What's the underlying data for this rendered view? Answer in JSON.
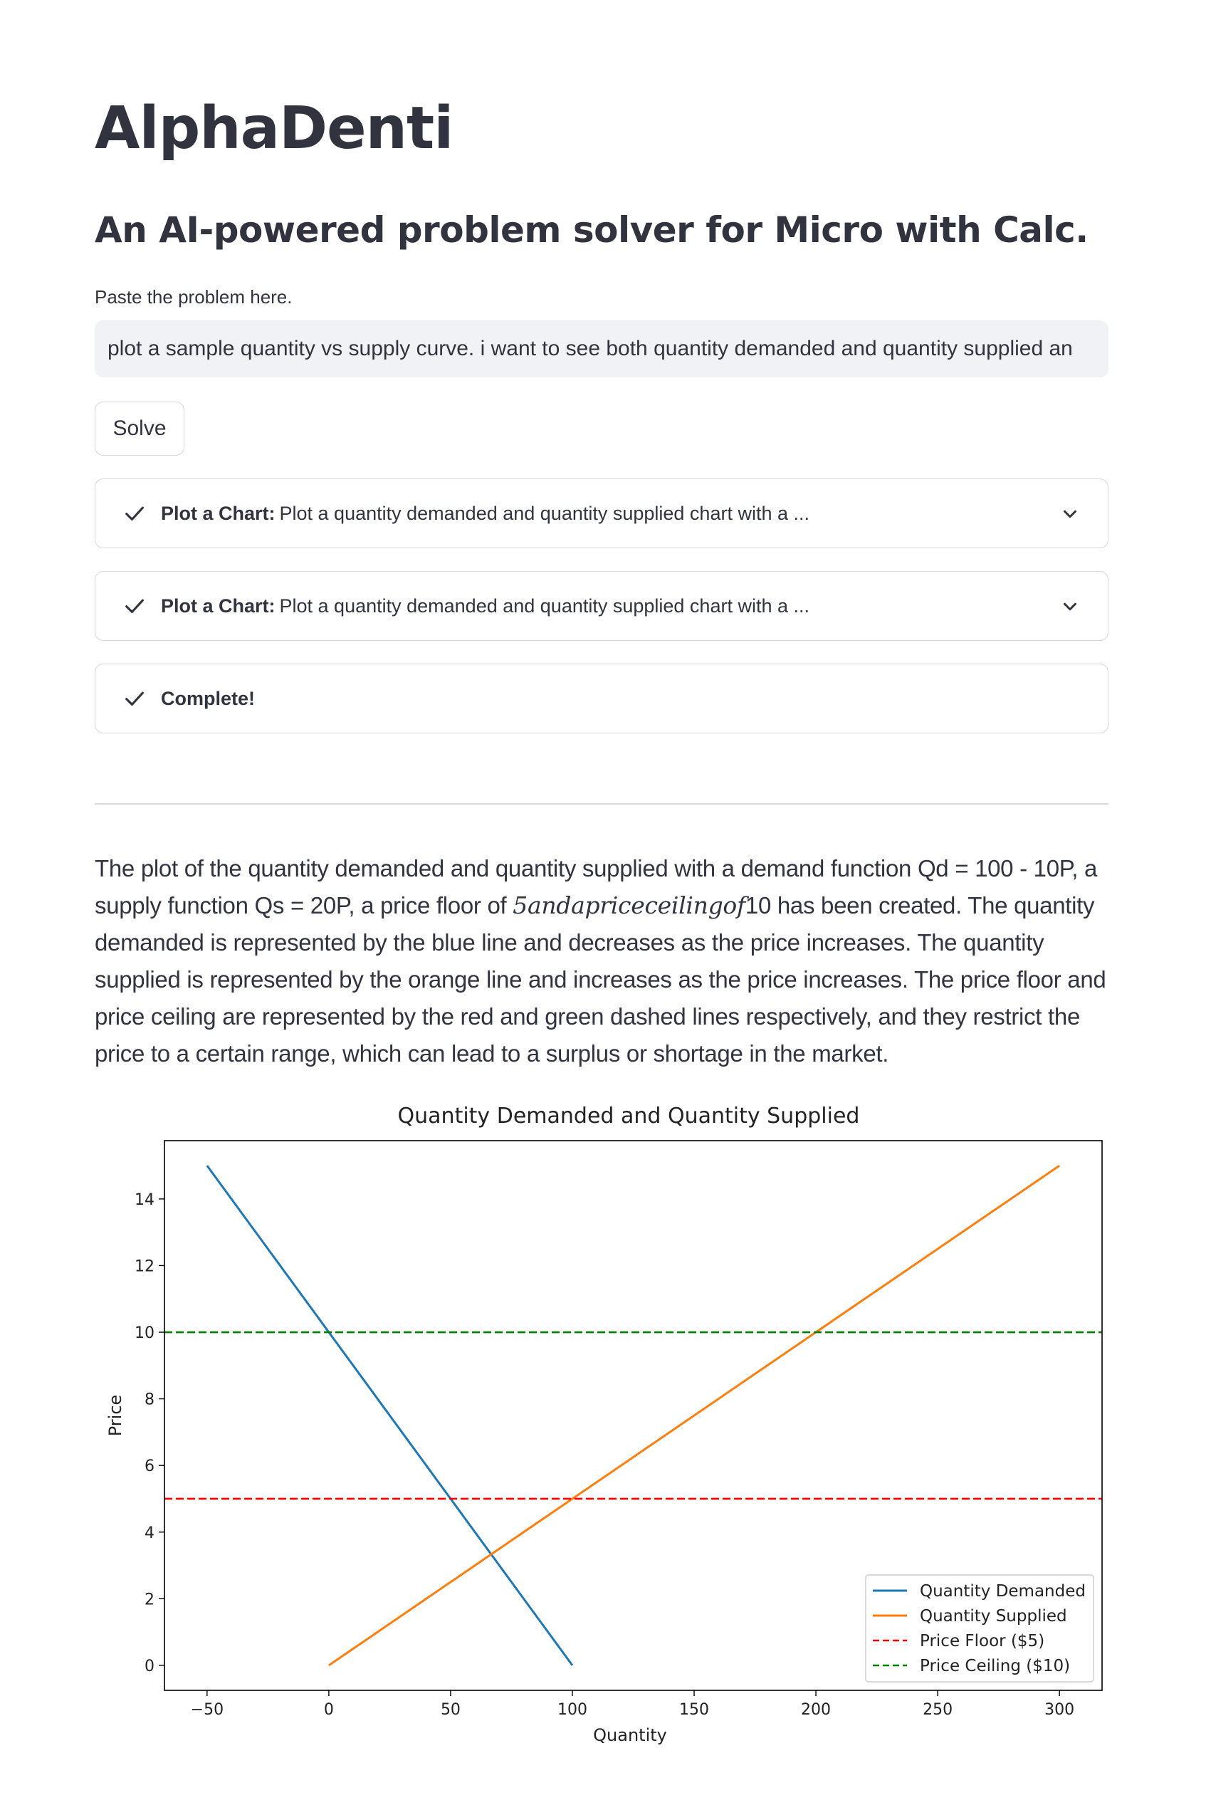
{
  "app": {
    "title": "AlphaDenti",
    "subtitle": "An AI-powered problem solver for Micro with Calc."
  },
  "problem_input": {
    "label": "Paste the problem here.",
    "value": "plot a sample quantity vs supply curve. i want to see both quantity demanded and quantity supplied an"
  },
  "solve_button": {
    "label": "Solve"
  },
  "status_steps": [
    {
      "label": "Plot a Chart:",
      "description": "Plot a quantity demanded and quantity supplied chart with a ...",
      "state": "complete",
      "expandable": true
    },
    {
      "label": "Plot a Chart:",
      "description": "Plot a quantity demanded and quantity supplied chart with a ...",
      "state": "complete",
      "expandable": true
    },
    {
      "label": "Complete!",
      "description": "",
      "state": "complete",
      "expandable": false
    }
  ],
  "answer": {
    "text_before_math": "The plot of the quantity demanded and quantity supplied with a demand function Qd = 100 - 10P, a supply function Qs = 20P, a price floor of ",
    "math": "5andapriceceilingof",
    "text_after_math": "10 has been created. The quantity demanded is represented by the blue line and decreases as the price increases. The quantity supplied is represented by the orange line and increases as the price increases. The price floor and price ceiling are represented by the red and green dashed lines respectively, and they restrict the price to a certain range, which can lead to a surplus or shortage in the market."
  },
  "colors": {
    "text": "#31333f",
    "input_bg": "#f0f2f6",
    "border": "#d6d7db",
    "demand": "#1f77b4",
    "supply": "#ff7f0e",
    "floor": "#ff0000",
    "ceiling": "#008000"
  },
  "chart_data": {
    "type": "line",
    "title": "Quantity Demanded and Quantity Supplied",
    "xlabel": "Quantity",
    "ylabel": "Price",
    "xlim": [
      -67.5,
      317.5
    ],
    "ylim": [
      -0.75,
      15.75
    ],
    "xticks": [
      -50,
      0,
      50,
      100,
      150,
      200,
      250,
      300
    ],
    "yticks": [
      0,
      2,
      4,
      6,
      8,
      10,
      12,
      14
    ],
    "grid": false,
    "legend_position": "lower-right",
    "series": [
      {
        "name": "Quantity Demanded",
        "style": "solid",
        "color": "#1f77b4",
        "x": [
          -50,
          100
        ],
        "y": [
          15,
          0
        ]
      },
      {
        "name": "Quantity Supplied",
        "style": "solid",
        "color": "#ff7f0e",
        "x": [
          0,
          300
        ],
        "y": [
          0,
          15
        ]
      },
      {
        "name": "Price Floor ($5)",
        "style": "dashed",
        "color": "#ff0000",
        "hline": 5
      },
      {
        "name": "Price Ceiling ($10)",
        "style": "dashed",
        "color": "#008000",
        "hline": 10
      }
    ]
  }
}
